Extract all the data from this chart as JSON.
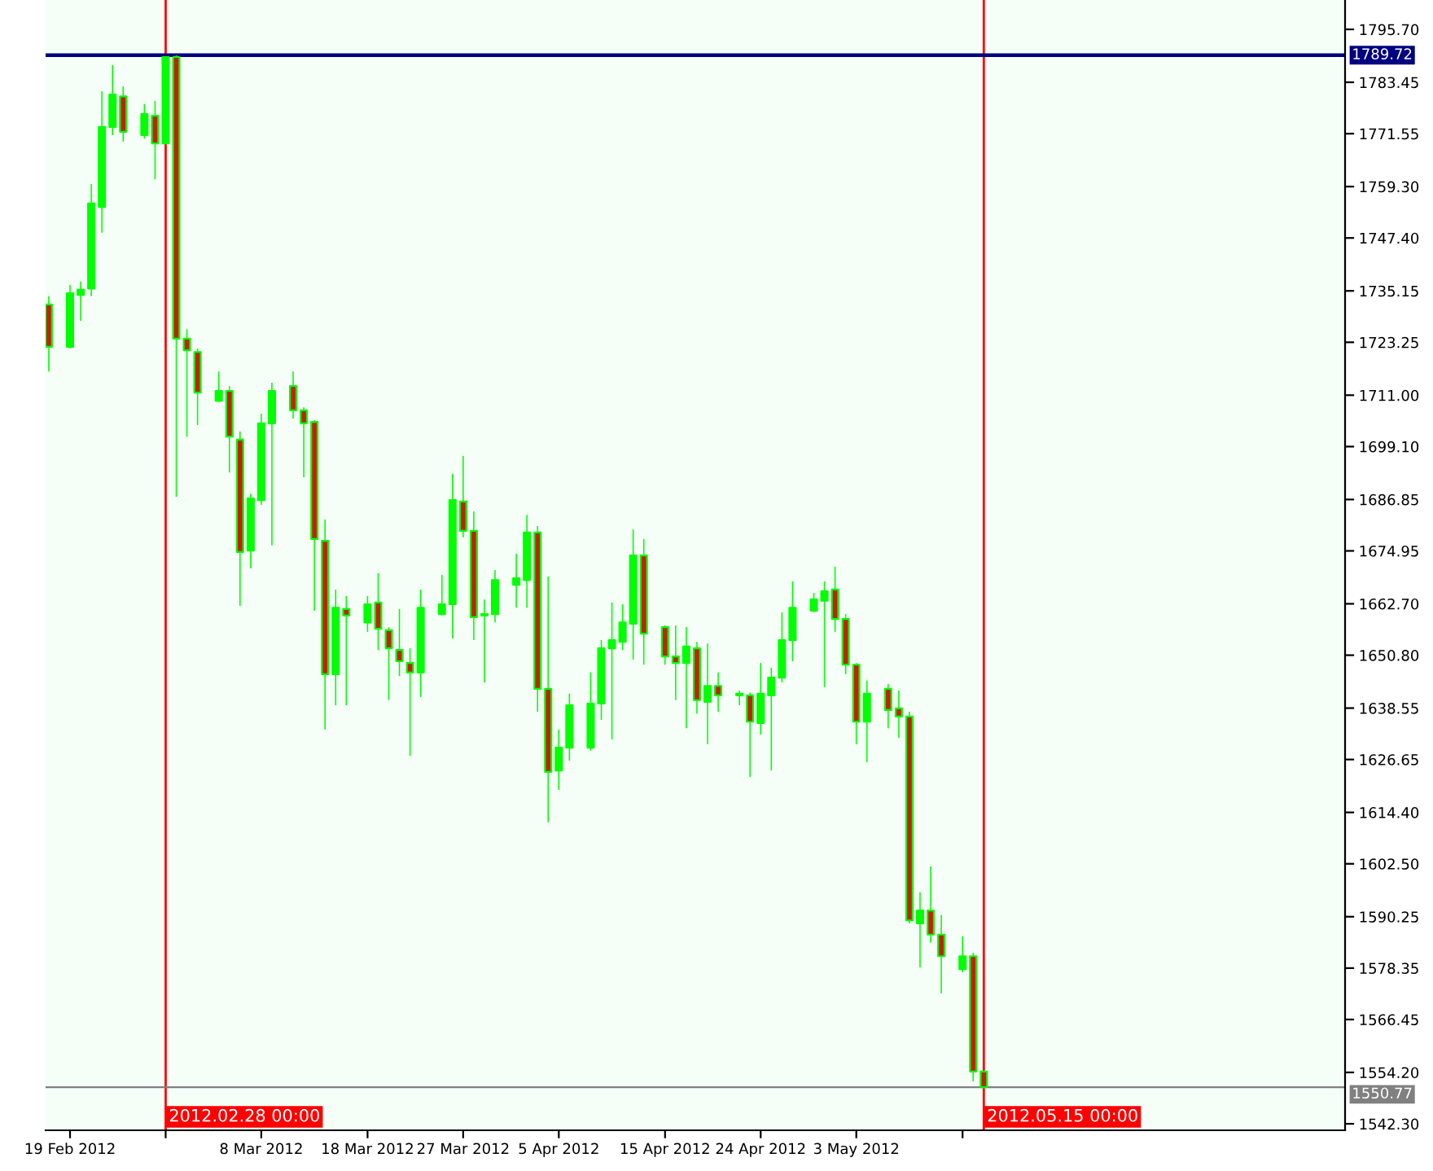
{
  "chart_data": {
    "type": "candlestick",
    "x": [
      "2012-02-17",
      "2012-02-19",
      "2012-02-20",
      "2012-02-21",
      "2012-02-22",
      "2012-02-23",
      "2012-02-24",
      "2012-02-26",
      "2012-02-27",
      "2012-02-28",
      "2012-02-29",
      "2012-03-01",
      "2012-03-02",
      "2012-03-04",
      "2012-03-05",
      "2012-03-06",
      "2012-03-07",
      "2012-03-08",
      "2012-03-09",
      "2012-03-11",
      "2012-03-12",
      "2012-03-13",
      "2012-03-14",
      "2012-03-15",
      "2012-03-16",
      "2012-03-18",
      "2012-03-19",
      "2012-03-20",
      "2012-03-21",
      "2012-03-22",
      "2012-03-23",
      "2012-03-25",
      "2012-03-26",
      "2012-03-27",
      "2012-03-28",
      "2012-03-29",
      "2012-03-30",
      "2012-04-01",
      "2012-04-02",
      "2012-04-03",
      "2012-04-04",
      "2012-04-05",
      "2012-04-06",
      "2012-04-08",
      "2012-04-09",
      "2012-04-10",
      "2012-04-11",
      "2012-04-12",
      "2012-04-13",
      "2012-04-15",
      "2012-04-16",
      "2012-04-17",
      "2012-04-18",
      "2012-04-19",
      "2012-04-20",
      "2012-04-22",
      "2012-04-23",
      "2012-04-24",
      "2012-04-25",
      "2012-04-26",
      "2012-04-27",
      "2012-04-29",
      "2012-04-30",
      "2012-05-01",
      "2012-05-02",
      "2012-05-03",
      "2012-05-04",
      "2012-05-06",
      "2012-05-07",
      "2012-05-08",
      "2012-05-09",
      "2012-05-10",
      "2012-05-11",
      "2012-05-13",
      "2012-05-14",
      "2012-05-15"
    ],
    "ohlc": [
      [
        1732.0,
        1733.9,
        1716.5,
        1722.2
      ],
      [
        1722.2,
        1736.5,
        1721.8,
        1734.6
      ],
      [
        1734.2,
        1737.3,
        1728.2,
        1735.4
      ],
      [
        1735.7,
        1759.9,
        1733.9,
        1755.4
      ],
      [
        1754.6,
        1781.4,
        1748.6,
        1773.1
      ],
      [
        1773.1,
        1787.4,
        1771.2,
        1780.6
      ],
      [
        1780.2,
        1782.5,
        1769.7,
        1772.0
      ],
      [
        1771.2,
        1778.4,
        1770.4,
        1776.1
      ],
      [
        1775.7,
        1779.1,
        1761.0,
        1769.3
      ],
      [
        1769.3,
        1789.5,
        1769.3,
        1789.3
      ],
      [
        1789.3,
        1789.72,
        1687.5,
        1724.1
      ],
      [
        1724.1,
        1726.3,
        1701.4,
        1721.4
      ],
      [
        1721.0,
        1721.8,
        1704.1,
        1711.6
      ],
      [
        1709.7,
        1716.5,
        1709.4,
        1712.0
      ],
      [
        1712.0,
        1713.1,
        1693.1,
        1701.4
      ],
      [
        1700.7,
        1702.6,
        1662.2,
        1674.7
      ],
      [
        1675.0,
        1688.2,
        1670.9,
        1687.1
      ],
      [
        1686.7,
        1706.7,
        1685.6,
        1704.5
      ],
      [
        1704.5,
        1713.9,
        1676.2,
        1712.0
      ],
      [
        1713.1,
        1716.5,
        1705.6,
        1707.5
      ],
      [
        1707.5,
        1708.2,
        1692.0,
        1704.5
      ],
      [
        1704.8,
        1705.2,
        1661.1,
        1677.7
      ],
      [
        1677.3,
        1682.2,
        1633.6,
        1646.4
      ],
      [
        1646.4,
        1666.0,
        1639.2,
        1661.8
      ],
      [
        1661.5,
        1664.5,
        1639.2,
        1660.0
      ],
      [
        1658.4,
        1664.5,
        1656.2,
        1662.6
      ],
      [
        1663.0,
        1669.8,
        1652.0,
        1656.9
      ],
      [
        1656.6,
        1657.3,
        1640.4,
        1652.4
      ],
      [
        1652.0,
        1661.5,
        1646.0,
        1649.4
      ],
      [
        1649.0,
        1652.4,
        1627.5,
        1646.8
      ],
      [
        1646.8,
        1666.0,
        1641.1,
        1661.8
      ],
      [
        1660.3,
        1669.4,
        1660.0,
        1662.6
      ],
      [
        1662.6,
        1692.8,
        1654.7,
        1686.7
      ],
      [
        1686.4,
        1696.9,
        1678.1,
        1679.6
      ],
      [
        1679.6,
        1684.1,
        1654.3,
        1659.6
      ],
      [
        1660.0,
        1663.7,
        1644.5,
        1660.3
      ],
      [
        1660.3,
        1670.5,
        1658.4,
        1668.2
      ],
      [
        1667.1,
        1674.3,
        1661.8,
        1668.6
      ],
      [
        1668.2,
        1683.3,
        1661.8,
        1679.2
      ],
      [
        1679.2,
        1680.7,
        1637.7,
        1643.0
      ],
      [
        1643.0,
        1669.0,
        1612.1,
        1623.8
      ],
      [
        1624.1,
        1633.6,
        1619.6,
        1629.4
      ],
      [
        1629.4,
        1641.9,
        1626.4,
        1639.2
      ],
      [
        1629.4,
        1646.8,
        1628.7,
        1639.6
      ],
      [
        1639.6,
        1654.3,
        1635.8,
        1652.4
      ],
      [
        1652.4,
        1663.0,
        1631.3,
        1654.3
      ],
      [
        1653.9,
        1662.6,
        1652.0,
        1658.4
      ],
      [
        1658.1,
        1679.9,
        1649.8,
        1673.9
      ],
      [
        1673.9,
        1677.7,
        1648.6,
        1655.8
      ],
      [
        1657.3,
        1657.7,
        1648.6,
        1650.5
      ],
      [
        1650.5,
        1657.7,
        1640.4,
        1649.0
      ],
      [
        1649.0,
        1657.3,
        1633.9,
        1652.8
      ],
      [
        1652.4,
        1653.9,
        1637.3,
        1640.4
      ],
      [
        1640.0,
        1653.5,
        1630.2,
        1643.7
      ],
      [
        1643.7,
        1646.8,
        1637.7,
        1641.5
      ],
      [
        1641.5,
        1642.6,
        1639.2,
        1641.9
      ],
      [
        1641.5,
        1642.2,
        1622.6,
        1635.4
      ],
      [
        1635.1,
        1649.0,
        1632.4,
        1641.9
      ],
      [
        1641.5,
        1647.9,
        1624.1,
        1645.6
      ],
      [
        1645.6,
        1660.7,
        1644.5,
        1654.3
      ],
      [
        1654.3,
        1667.9,
        1649.4,
        1661.8
      ],
      [
        1661.1,
        1665.2,
        1660.7,
        1663.7
      ],
      [
        1663.4,
        1667.9,
        1643.4,
        1665.6
      ],
      [
        1666.0,
        1671.3,
        1656.2,
        1659.2
      ],
      [
        1659.2,
        1660.3,
        1646.4,
        1648.6
      ],
      [
        1648.6,
        1649.0,
        1630.2,
        1635.4
      ],
      [
        1635.4,
        1644.9,
        1626.0,
        1641.9
      ],
      [
        1643.0,
        1644.1,
        1633.9,
        1638.1
      ],
      [
        1638.5,
        1642.6,
        1631.7,
        1636.6
      ],
      [
        1636.6,
        1637.7,
        1588.7,
        1589.4
      ],
      [
        1588.7,
        1595.9,
        1578.5,
        1591.7
      ],
      [
        1591.7,
        1601.9,
        1584.2,
        1586.1
      ],
      [
        1586.1,
        1590.6,
        1572.5,
        1581.1
      ],
      [
        1578.1,
        1585.7,
        1577.4,
        1581.1
      ],
      [
        1581.1,
        1581.9,
        1552.1,
        1554.4
      ],
      [
        1554.4,
        1554.6,
        1550.5,
        1550.77
      ]
    ],
    "color": "#00ff00",
    "colors": [
      "#c81e00",
      "#00ff00",
      "#00ff00",
      "#00ff00",
      "#00ff00",
      "#00ff00",
      "#c81e00",
      "#00ff00",
      "#c81e00",
      "#00ff00",
      "#c81e00",
      "#c81e00",
      "#c81e00",
      "#00ff00",
      "#c81e00",
      "#c81e00",
      "#00ff00",
      "#00ff00",
      "#00ff00",
      "#c81e00",
      "#c81e00",
      "#c81e00",
      "#c81e00",
      "#00ff00",
      "#c81e00",
      "#00ff00",
      "#c81e00",
      "#c81e00",
      "#c81e00",
      "#c81e00",
      "#00ff00",
      "#00ff00",
      "#00ff00",
      "#c81e00",
      "#c81e00",
      "#00ff00",
      "#00ff00",
      "#00ff00",
      "#00ff00",
      "#c81e00",
      "#c81e00",
      "#00ff00",
      "#00ff00",
      "#00ff00",
      "#00ff00",
      "#00ff00",
      "#00ff00",
      "#00ff00",
      "#c81e00",
      "#c81e00",
      "#c81e00",
      "#00ff00",
      "#c81e00",
      "#00ff00",
      "#c81e00",
      "#00ff00",
      "#c81e00",
      "#00ff00",
      "#00ff00",
      "#00ff00",
      "#00ff00",
      "#00ff00",
      "#00ff00",
      "#c81e00",
      "#c81e00",
      "#c81e00",
      "#00ff00",
      "#c81e00",
      "#c81e00",
      "#c81e00",
      "#00ff00",
      "#c81e00",
      "#c81e00",
      "#00ff00",
      "#c81e00",
      "#c81e00"
    ],
    "xlim": [
      "2012-02-16T16:48",
      "2012-06-18"
    ],
    "ylim": [
      1540.8,
      1802.5
    ],
    "yticks": [
      {
        "value": 1542.3,
        "label": "1542.30"
      },
      {
        "value": 1554.2,
        "label": "1554.20"
      },
      {
        "value": 1566.45,
        "label": "1566.45"
      },
      {
        "value": 1578.35,
        "label": "1578.35"
      },
      {
        "value": 1590.25,
        "label": "1590.25"
      },
      {
        "value": 1602.5,
        "label": "1602.50"
      },
      {
        "value": 1614.4,
        "label": "1614.40"
      },
      {
        "value": 1626.65,
        "label": "1626.65"
      },
      {
        "value": 1638.55,
        "label": "1638.55"
      },
      {
        "value": 1650.8,
        "label": "1650.80"
      },
      {
        "value": 1662.7,
        "label": "1662.70"
      },
      {
        "value": 1674.95,
        "label": "1674.95"
      },
      {
        "value": 1686.85,
        "label": "1686.85"
      },
      {
        "value": 1699.1,
        "label": "1699.10"
      },
      {
        "value": 1711.0,
        "label": "1711.00"
      },
      {
        "value": 1723.25,
        "label": "1723.25"
      },
      {
        "value": 1735.15,
        "label": "1735.15"
      },
      {
        "value": 1747.4,
        "label": "1747.40"
      },
      {
        "value": 1759.3,
        "label": "1759.30"
      },
      {
        "value": 1771.55,
        "label": "1771.55"
      },
      {
        "value": 1783.45,
        "label": "1783.45"
      },
      {
        "value": 1795.7,
        "label": "1795.70"
      }
    ],
    "xticks": [
      {
        "value": "2012-02-19",
        "label": "19 Feb 2012"
      },
      {
        "value": "2012-02-28",
        "label": null
      },
      {
        "value": "2012-03-08",
        "label": "8 Mar 2012"
      },
      {
        "value": "2012-03-18",
        "label": "18 Mar 2012"
      },
      {
        "value": "2012-03-27",
        "label": "27 Mar 2012"
      },
      {
        "value": "2012-04-05",
        "label": "5 Apr 2012"
      },
      {
        "value": "2012-04-15",
        "label": "15 Apr 2012"
      },
      {
        "value": "2012-04-24",
        "label": "24 Apr 2012"
      },
      {
        "value": "2012-05-03",
        "label": "3 May 2012"
      },
      {
        "value": "2012-05-13",
        "label": null
      }
    ],
    "ref_lines": [
      {
        "axis": "x",
        "value": "2012-02-28",
        "label": "2012.02.28 00:00",
        "color": "#ff0000"
      },
      {
        "axis": "x",
        "value": "2012-05-15",
        "label": "2012.05.15 00:00",
        "color": "#ff0000"
      },
      {
        "axis": "y",
        "value": 1789.72,
        "label": "1789.72",
        "color": "#000080"
      },
      {
        "axis": "y",
        "value": 1550.77,
        "label": "1550.77",
        "color": "#808080"
      }
    ],
    "grid": false
  }
}
